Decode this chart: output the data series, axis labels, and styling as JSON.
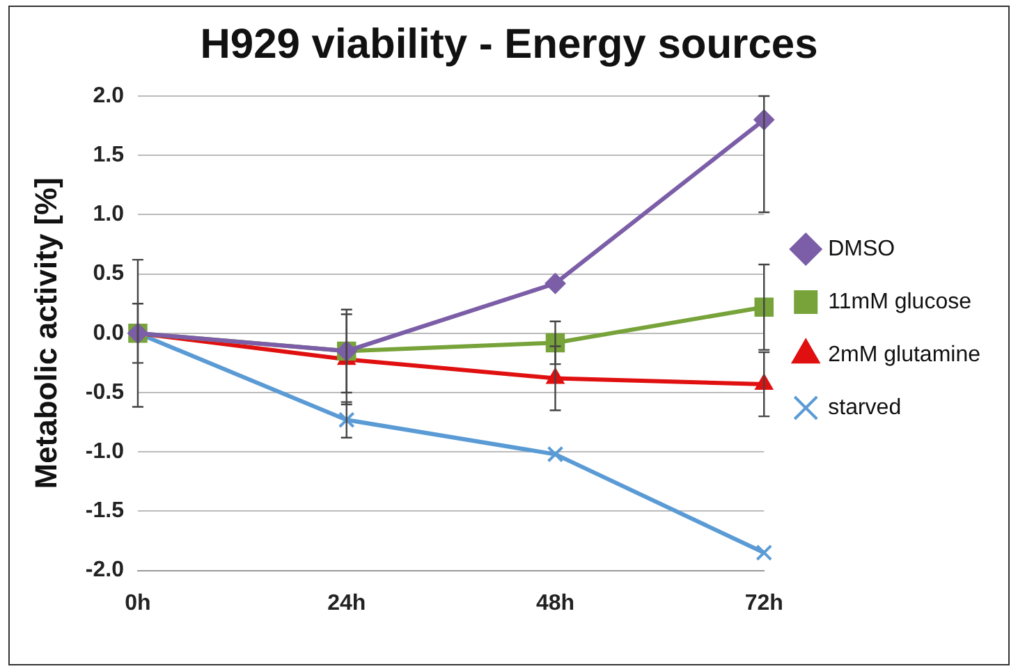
{
  "chart_data": {
    "type": "line",
    "title": "H929 viability - Energy sources",
    "ylabel": "Metabolic activity [%]",
    "categories": [
      "0h",
      "24h",
      "48h",
      "72h"
    ],
    "ylim": [
      -2.0,
      2.0
    ],
    "yticks": [
      {
        "value": -2,
        "label": "-2.0"
      },
      {
        "value": -1.5,
        "label": "-1.5"
      },
      {
        "value": -1,
        "label": "-1.0"
      },
      {
        "value": -0.5,
        "label": "-0.5"
      },
      {
        "value": 0,
        "label": "0.0"
      },
      {
        "value": 0.5,
        "label": "0.5"
      },
      {
        "value": 1,
        "label": "1.0"
      },
      {
        "value": 1.5,
        "label": "1.5"
      },
      {
        "value": 2,
        "label": "2.0"
      }
    ],
    "grid": "y",
    "legend": "right",
    "series": [
      {
        "name": "DMSO",
        "color": "#7b5ea7",
        "marker": "diamond",
        "values": [
          0,
          -0.15,
          0.42,
          1.8
        ],
        "errors": [
          0.62,
          null,
          null,
          [
            1.02,
            2.0
          ]
        ]
      },
      {
        "name": "11mM glucose",
        "color": "#77a33a",
        "marker": "square",
        "values": [
          0,
          -0.15,
          -0.08,
          0.22
        ],
        "errors": [
          null,
          0.35,
          0.18,
          0.36
        ]
      },
      {
        "name": "2mM glutamine",
        "color": "#e01010",
        "marker": "triangle",
        "values": [
          0,
          -0.22,
          -0.38,
          -0.43
        ],
        "errors": [
          0.25,
          0.38,
          0.27,
          0.27
        ]
      },
      {
        "name": "starved",
        "color": "#5b9bd5",
        "marker": "cross",
        "values": [
          0,
          -0.73,
          -1.02,
          -1.85
        ],
        "errors": [
          null,
          0.15,
          null,
          null
        ]
      }
    ]
  }
}
